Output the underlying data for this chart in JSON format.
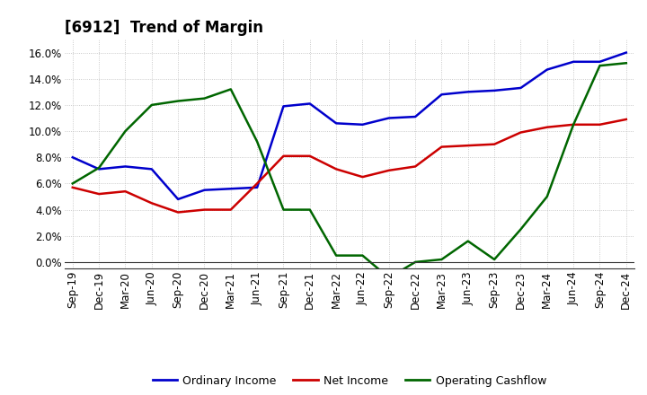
{
  "title": "[6912]  Trend of Margin",
  "x_labels": [
    "Sep-19",
    "Dec-19",
    "Mar-20",
    "Jun-20",
    "Sep-20",
    "Dec-20",
    "Mar-21",
    "Jun-21",
    "Sep-21",
    "Dec-21",
    "Mar-22",
    "Jun-22",
    "Sep-22",
    "Dec-22",
    "Mar-23",
    "Jun-23",
    "Sep-23",
    "Dec-23",
    "Mar-24",
    "Jun-24",
    "Sep-24",
    "Dec-24"
  ],
  "ordinary_income": [
    0.08,
    0.071,
    0.073,
    0.071,
    0.048,
    0.055,
    0.056,
    0.057,
    0.119,
    0.121,
    0.106,
    0.105,
    0.11,
    0.111,
    0.128,
    0.13,
    0.131,
    0.133,
    0.147,
    0.153,
    0.153,
    0.16
  ],
  "net_income": [
    0.057,
    0.052,
    0.054,
    0.045,
    0.038,
    0.04,
    0.04,
    0.06,
    0.081,
    0.081,
    0.071,
    0.065,
    0.07,
    0.073,
    0.088,
    0.089,
    0.09,
    0.099,
    0.103,
    0.105,
    0.105,
    0.109
  ],
  "operating_cashflow": [
    0.06,
    0.072,
    0.1,
    0.12,
    0.123,
    0.125,
    0.132,
    0.092,
    0.04,
    0.04,
    0.005,
    0.005,
    -0.012,
    0.0,
    0.002,
    0.016,
    0.002,
    0.025,
    0.05,
    0.105,
    0.15,
    0.152
  ],
  "ylim": [
    -0.005,
    0.17
  ],
  "yticks": [
    0.0,
    0.02,
    0.04,
    0.06,
    0.08,
    0.1,
    0.12,
    0.14,
    0.16
  ],
  "line_color_ordinary": "#0000CC",
  "line_color_net": "#CC0000",
  "line_color_cashflow": "#006600",
  "legend_labels": [
    "Ordinary Income",
    "Net Income",
    "Operating Cashflow"
  ],
  "background_color": "#FFFFFF",
  "plot_bg_color": "#FFFFFF",
  "grid_color": "#BBBBBB",
  "title_fontsize": 12,
  "axis_fontsize": 8.5,
  "legend_fontsize": 9
}
